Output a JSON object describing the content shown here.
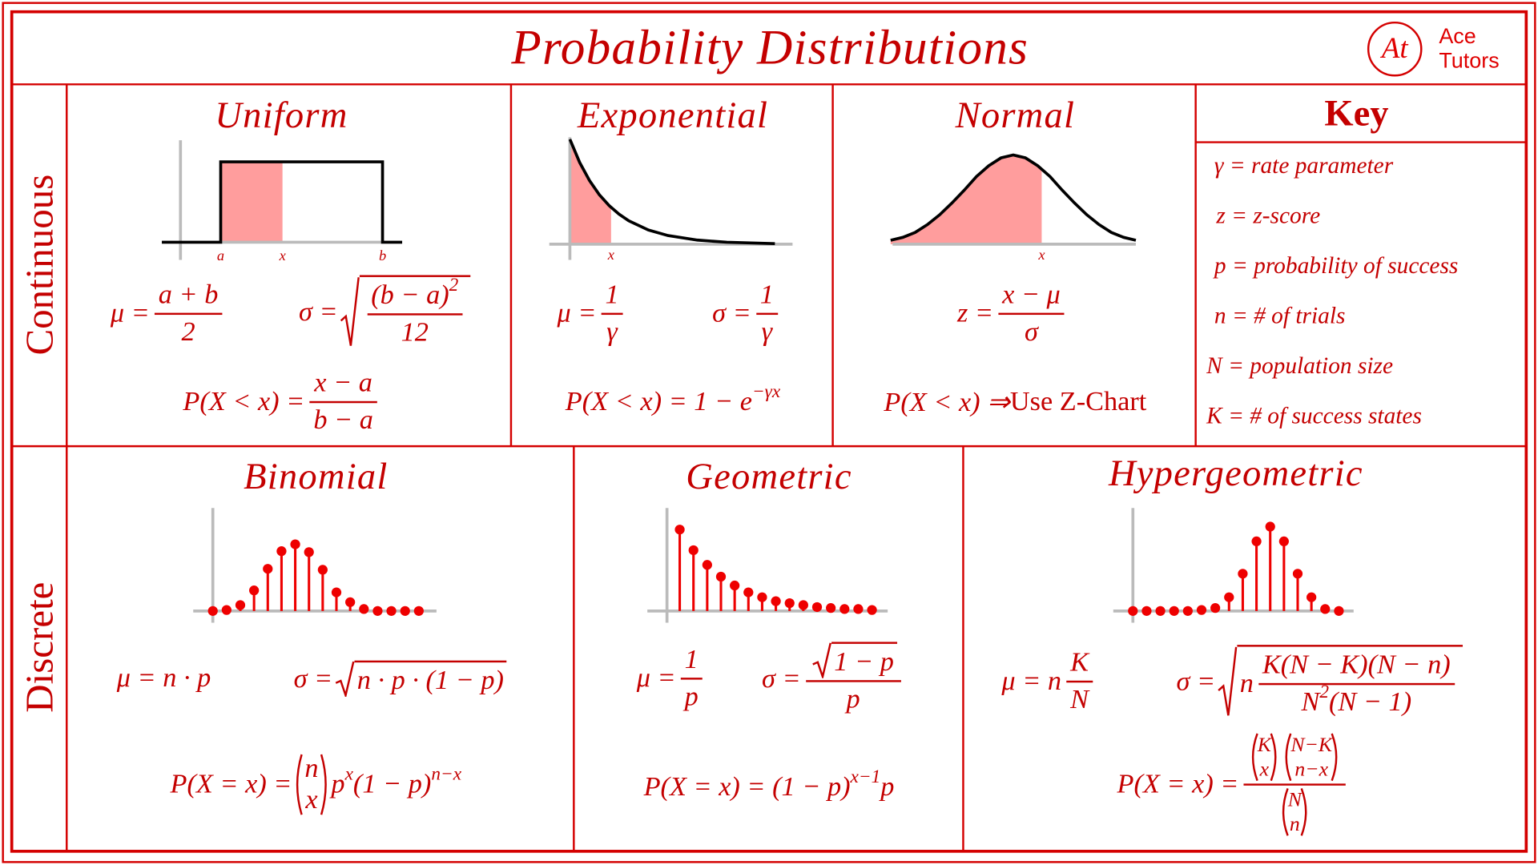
{
  "header": {
    "title": "Probability Distributions",
    "logo_mark": "At",
    "logo_text": [
      "Ace",
      "Tutors"
    ]
  },
  "sections": [
    {
      "label": "Continuous",
      "distributions": [
        {
          "name": "Uniform",
          "axis_labels": [
            "a",
            "x",
            "b"
          ],
          "mean": [
            "μ = ",
            {
              "frac": [
                [
                  "a + b"
                ],
                [
                  "2"
                ]
              ]
            }
          ],
          "sd": [
            "σ = ",
            {
              "sqrt": [
                {
                  "frac": [
                    [
                      "(b − a)",
                      {
                        "sup": [
                          "2"
                        ]
                      }
                    ],
                    [
                      "12"
                    ]
                  ]
                }
              ]
            }
          ],
          "probability": [
            "P(X < x) = ",
            {
              "frac": [
                [
                  "x − a"
                ],
                [
                  "b − a"
                ]
              ]
            }
          ]
        },
        {
          "name": "Exponential",
          "axis_labels": [
            "x"
          ],
          "mean": [
            "μ = ",
            {
              "frac": [
                [
                  "1"
                ],
                [
                  "γ"
                ]
              ]
            }
          ],
          "sd": [
            "σ = ",
            {
              "frac": [
                [
                  "1"
                ],
                [
                  "γ"
                ]
              ]
            }
          ],
          "probability": [
            "P(X < x) = 1 − e",
            {
              "sup": [
                "−γx"
              ]
            }
          ]
        },
        {
          "name": "Normal",
          "axis_labels": [
            "x"
          ],
          "score": [
            "z = ",
            {
              "frac": [
                [
                  "x − μ"
                ],
                [
                  "σ"
                ]
              ]
            }
          ],
          "probability": [
            "P(X < x) ⇒ ",
            {
              "roman": "Use Z-Chart"
            }
          ]
        }
      ]
    },
    {
      "label": "Discrete",
      "distributions": [
        {
          "name": "Binomial",
          "mean": [
            "μ = n · p"
          ],
          "sd": [
            "σ = ",
            {
              "sqrt": [
                "n · p · (1 − p)"
              ]
            }
          ],
          "probability": [
            "P(X = x) = ",
            {
              "binom": [
                [
                  "n"
                ],
                [
                  "x"
                ]
              ]
            },
            "p",
            {
              "sup": [
                "x"
              ]
            },
            "(1 − p)",
            {
              "sup": [
                "n−x"
              ]
            }
          ]
        },
        {
          "name": "Geometric",
          "mean": [
            "μ = ",
            {
              "frac": [
                [
                  "1"
                ],
                [
                  "p"
                ]
              ]
            }
          ],
          "sd": [
            "σ = ",
            {
              "frac": [
                [
                  {
                    "sqrt": [
                      "1 − p"
                    ]
                  }
                ],
                [
                  "p"
                ]
              ]
            }
          ],
          "probability": [
            "P(X = x) = (1 − p)",
            {
              "sup": [
                "x−1"
              ]
            },
            "p"
          ]
        },
        {
          "name": "Hypergeometric",
          "mean": [
            "μ = n",
            {
              "frac": [
                [
                  "K"
                ],
                [
                  "N"
                ]
              ]
            }
          ],
          "sd": [
            "σ = ",
            {
              "sqrt": [
                "n",
                {
                  "frac": [
                    [
                      "K(N − K)(N − n)"
                    ],
                    [
                      "N",
                      {
                        "sup": [
                          "2"
                        ]
                      },
                      "(N − 1)"
                    ]
                  ]
                }
              ]
            }
          ],
          "probability": [
            "P(X = x) = ",
            {
              "frac": [
                [
                  {
                    "binom": [
                      [
                        "K"
                      ],
                      [
                        "x"
                      ]
                    ]
                  },
                  {
                    "binom": [
                      [
                        "N−K"
                      ],
                      [
                        "n−x"
                      ]
                    ]
                  }
                ],
                [
                  {
                    "binom": [
                      [
                        "N"
                      ],
                      [
                        "n"
                      ]
                    ]
                  }
                ]
              ]
            }
          ]
        }
      ]
    }
  ],
  "key": {
    "title": "Key",
    "items": [
      "γ = rate parameter",
      "z = z-score",
      "p = probability of success",
      "n = # of trials",
      "N = population size",
      "K = # of success states"
    ]
  }
}
